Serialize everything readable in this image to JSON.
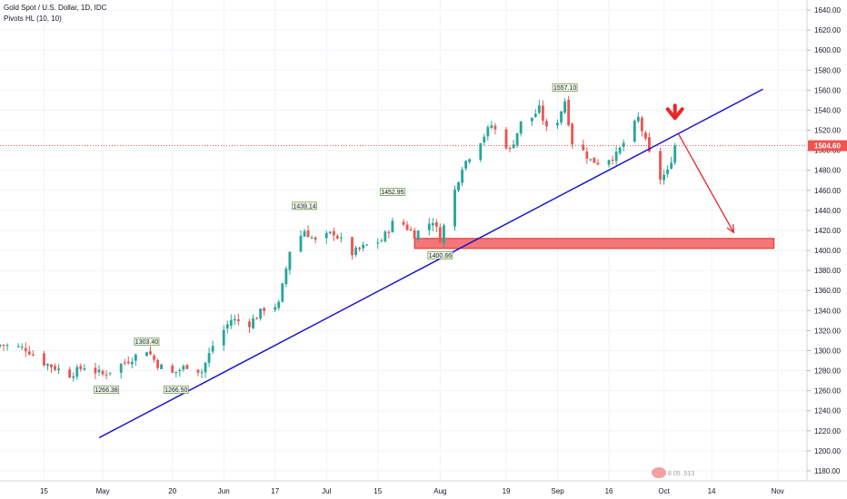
{
  "header": {
    "title": "Gold Spot / U.S. Dollar, 1D, IDC",
    "indicator": "Pivots HL (10, 10)"
  },
  "colors": {
    "up": "#26a69a",
    "down": "#ef5350",
    "trendline": "#1a16c8",
    "zone_fill": "#f47777",
    "zone_stroke": "#e8282b",
    "arrow": "#e8282b",
    "price_line": "#ef5350",
    "pivot_bg": "#f3f9ee",
    "pivot_border": "#5b8f3c"
  },
  "chart_data": {
    "type": "candlestick",
    "title": "Gold Spot / U.S. Dollar, 1D, IDC",
    "ylim": [
      1170,
      1650
    ],
    "y_ticks": [
      1180,
      1200,
      1220,
      1240,
      1260,
      1280,
      1300,
      1320,
      1340,
      1360,
      1380,
      1400,
      1420,
      1440,
      1460,
      1480,
      1500,
      1520,
      1540,
      1560,
      1580,
      1600,
      1620,
      1640
    ],
    "y_tick_labels": [
      "1180.00",
      "1200.00",
      "1220.00",
      "1240.00",
      "1260.00",
      "1280.00",
      "1300.00",
      "1320.00",
      "1340.00",
      "1360.00",
      "1380.00",
      "1400.00",
      "1420.00",
      "1440.00",
      "1460.00",
      "1480.00",
      "1500.00",
      "1520.00",
      "1540.00",
      "1560.00",
      "1580.00",
      "1600.00",
      "1620.00",
      "1640.00"
    ],
    "x_labels": [
      {
        "label": "15",
        "date": "2019-04-15"
      },
      {
        "label": "May",
        "date": "2019-05-01"
      },
      {
        "label": "20",
        "date": "2019-05-20"
      },
      {
        "label": "Jun",
        "date": "2019-06-03"
      },
      {
        "label": "17",
        "date": "2019-06-17"
      },
      {
        "label": "Jul",
        "date": "2019-07-01"
      },
      {
        "label": "15",
        "date": "2019-07-15"
      },
      {
        "label": "Aug",
        "date": "2019-08-01"
      },
      {
        "label": "19",
        "date": "2019-08-19"
      },
      {
        "label": "Sep",
        "date": "2019-09-02"
      },
      {
        "label": "16",
        "date": "2019-09-16"
      },
      {
        "label": "Oct",
        "date": "2019-10-01"
      },
      {
        "label": "14",
        "date": "2019-10-14"
      },
      {
        "label": "Nov",
        "date": "2019-11-01"
      }
    ],
    "x_domain": [
      "2019-04-03",
      "2019-11-09"
    ],
    "close_anchors": [
      [
        "2019-04-03",
        1306
      ],
      [
        "2019-04-10",
        1302
      ],
      [
        "2019-04-15",
        1288
      ],
      [
        "2019-04-22",
        1276
      ],
      [
        "2019-04-26",
        1284
      ],
      [
        "2019-05-01",
        1276
      ],
      [
        "2019-05-03",
        1280
      ],
      [
        "2019-05-13",
        1301
      ],
      [
        "2019-05-16",
        1286
      ],
      [
        "2019-05-20",
        1277
      ],
      [
        "2019-05-24",
        1285
      ],
      [
        "2019-05-28",
        1279
      ],
      [
        "2019-05-31",
        1305
      ],
      [
        "2019-06-05",
        1331
      ],
      [
        "2019-06-10",
        1327
      ],
      [
        "2019-06-14",
        1342
      ],
      [
        "2019-06-18",
        1346
      ],
      [
        "2019-06-21",
        1400
      ],
      [
        "2019-06-25",
        1420
      ],
      [
        "2019-06-28",
        1409
      ],
      [
        "2019-07-03",
        1418
      ],
      [
        "2019-07-08",
        1397
      ],
      [
        "2019-07-12",
        1405
      ],
      [
        "2019-07-16",
        1410
      ],
      [
        "2019-07-19",
        1427
      ],
      [
        "2019-07-22",
        1426
      ],
      [
        "2019-07-25",
        1416
      ],
      [
        "2019-07-30",
        1430
      ],
      [
        "2019-08-01",
        1412
      ],
      [
        "2019-08-07",
        1484
      ],
      [
        "2019-08-12",
        1510
      ],
      [
        "2019-08-15",
        1525
      ],
      [
        "2019-08-20",
        1500
      ],
      [
        "2019-08-23",
        1527
      ],
      [
        "2019-08-26",
        1533
      ],
      [
        "2019-08-28",
        1541
      ],
      [
        "2019-08-30",
        1521
      ],
      [
        "2019-09-02",
        1530
      ],
      [
        "2019-09-04",
        1550
      ],
      [
        "2019-09-06",
        1508
      ],
      [
        "2019-09-09",
        1499
      ],
      [
        "2019-09-11",
        1490
      ],
      [
        "2019-09-13",
        1488
      ],
      [
        "2019-09-18",
        1495
      ],
      [
        "2019-09-24",
        1532
      ],
      [
        "2019-09-27",
        1496
      ],
      [
        "2019-09-30",
        1472
      ],
      [
        "2019-10-02",
        1478
      ],
      [
        "2019-10-04",
        1504.6
      ]
    ],
    "pivots": [
      {
        "label": "1303.40",
        "date": "2019-05-13",
        "value": 1303.4,
        "type": "high"
      },
      {
        "label": "1266.38",
        "date": "2019-05-02",
        "value": 1266.38,
        "type": "low"
      },
      {
        "label": "1266.50",
        "date": "2019-05-21",
        "value": 1266.5,
        "type": "low"
      },
      {
        "label": "1439.14",
        "date": "2019-06-25",
        "value": 1439.14,
        "type": "high"
      },
      {
        "label": "1452.95",
        "date": "2019-07-19",
        "value": 1452.95,
        "type": "high"
      },
      {
        "label": "1400.66",
        "date": "2019-08-01",
        "value": 1400.66,
        "type": "low"
      },
      {
        "label": "1557.10",
        "date": "2019-09-04",
        "value": 1557.1,
        "type": "high"
      }
    ],
    "current_price": 1504.6,
    "current_price_label": "1504.60",
    "trendline": {
      "start": [
        "2019-04-30",
        1213
      ],
      "end": [
        "2019-10-28",
        1561
      ]
    },
    "support_zone": {
      "start_date": "2019-07-25",
      "end_date": "2019-10-31",
      "low": 1402,
      "high": 1412
    },
    "projection_arrow": {
      "from": [
        "2019-10-05",
        1516
      ],
      "to": [
        "2019-10-20",
        1418
      ]
    },
    "marker_arrow": {
      "date": "2019-10-04",
      "value": 1532
    }
  },
  "watermark": "8 05 .513"
}
